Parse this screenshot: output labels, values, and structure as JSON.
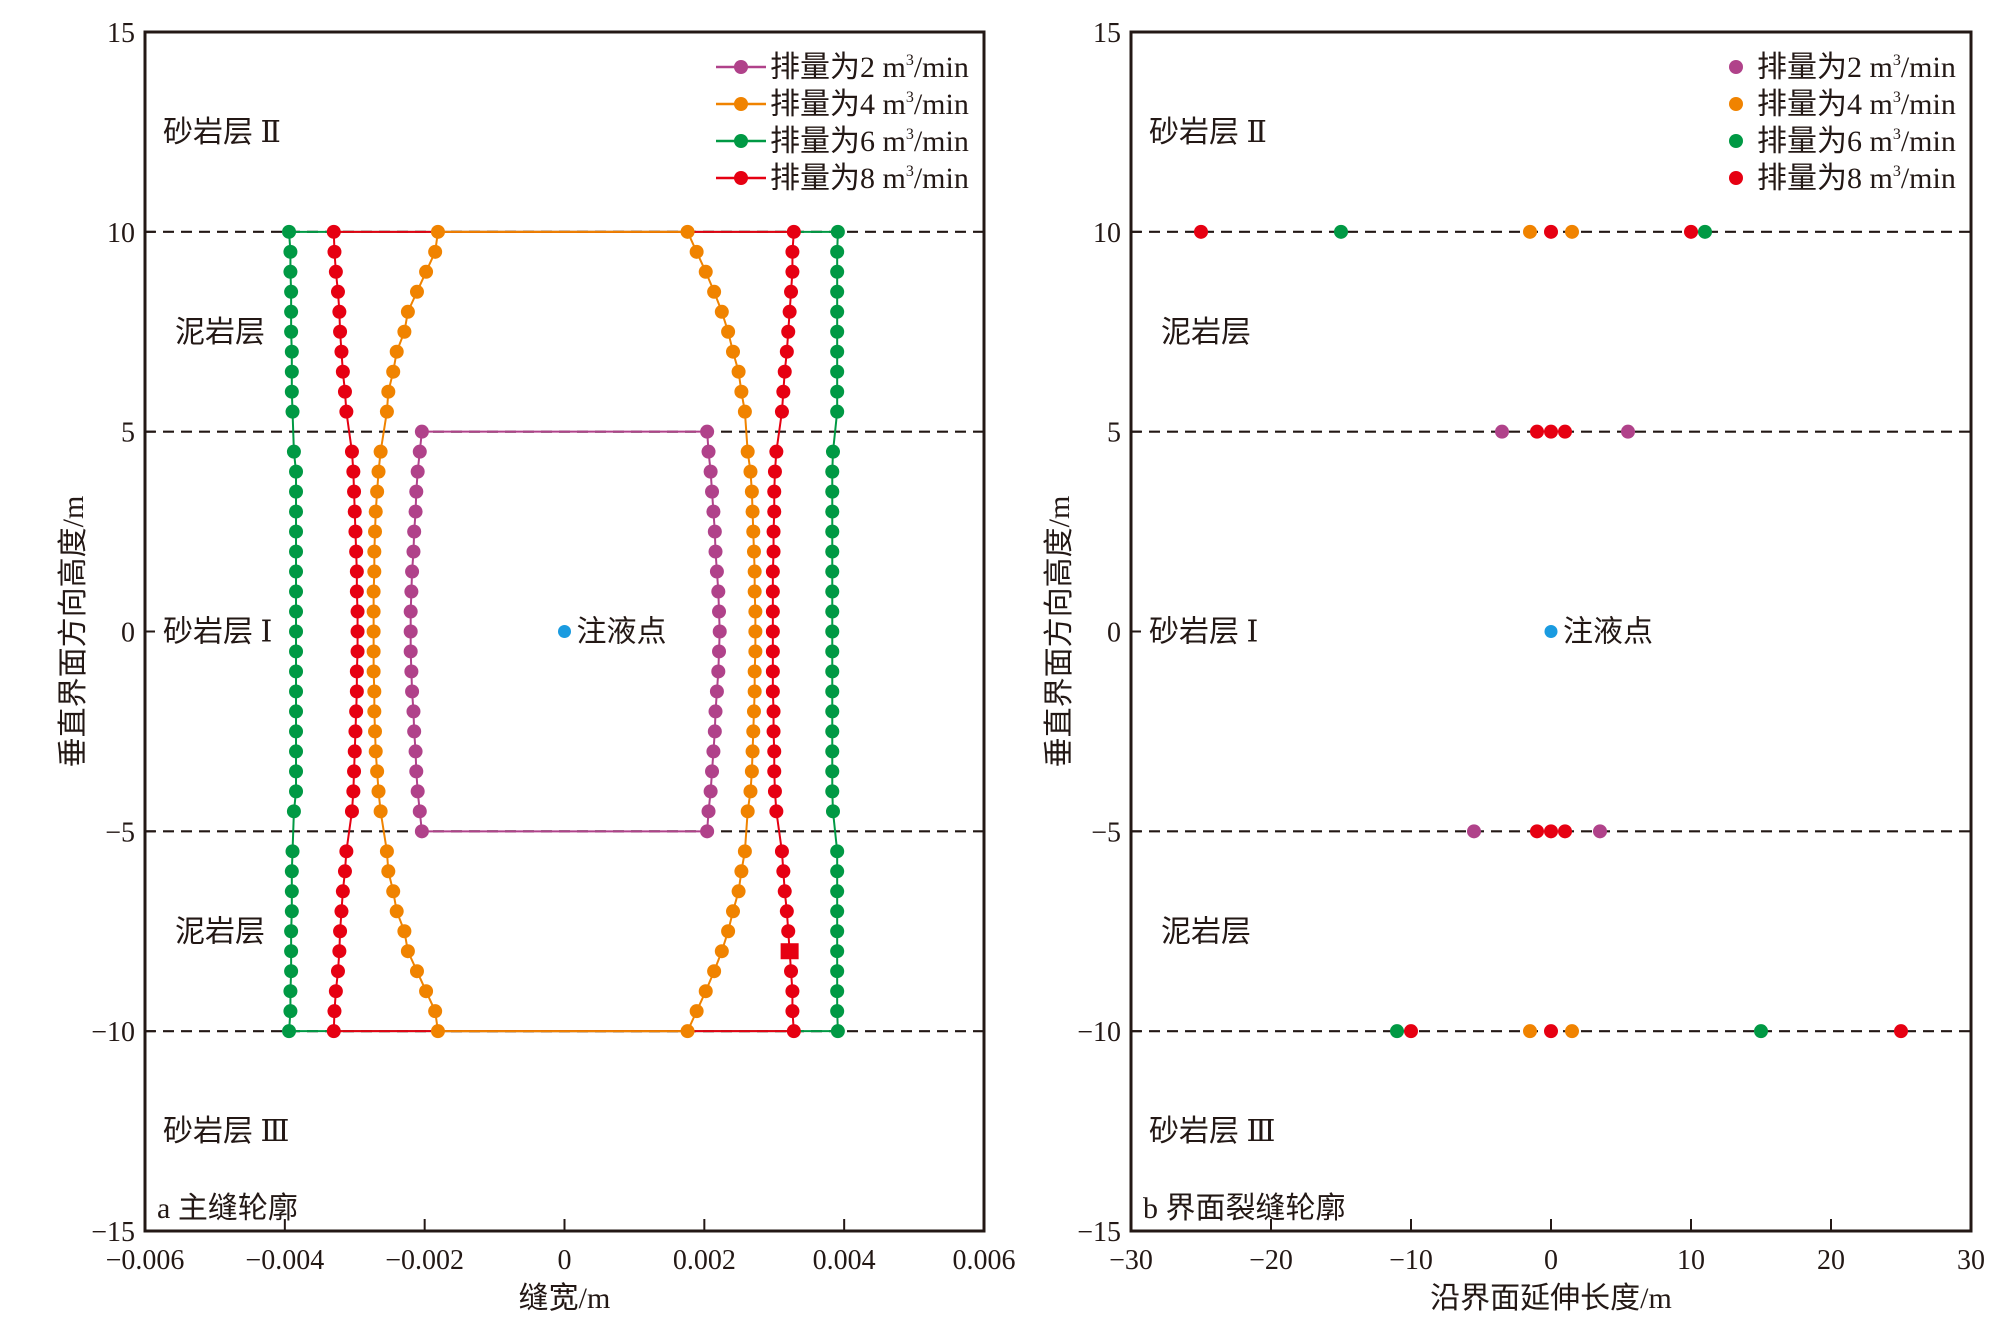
{
  "chart_data": [
    {
      "type": "line",
      "panel_label": "a 主缝轮廓",
      "xlabel": "缝宽/m",
      "ylabel": "垂直界面方向高度/m",
      "xlim": [
        -0.006,
        0.006
      ],
      "ylim": [
        -15,
        15
      ],
      "xticks": [
        "−0.006",
        "−0.004",
        "−0.002",
        "0",
        "0.002",
        "0.004",
        "0.006"
      ],
      "xtick_values": [
        -0.006,
        -0.004,
        -0.002,
        0,
        0.002,
        0.004,
        0.006
      ],
      "yticks": [
        "15",
        "10",
        "5",
        "0",
        "−5",
        "−10",
        "−15"
      ],
      "ytick_values": [
        15,
        10,
        5,
        0,
        -5,
        -10,
        -15
      ],
      "dashed_lines_y": [
        10,
        5,
        -5,
        -10
      ],
      "legend_position": "top-right",
      "layer_labels": [
        {
          "text": "砂岩层 Ⅱ",
          "y": 12.5
        },
        {
          "text": "泥岩层",
          "y": 7.5
        },
        {
          "text": "砂岩层 Ⅰ",
          "y": 0
        },
        {
          "text": "泥岩层",
          "y": -7.5
        },
        {
          "text": "砂岩层 Ⅲ",
          "y": -12.5
        }
      ],
      "injection_point": {
        "label": "注液点",
        "x": 0,
        "y": 0,
        "color": "#1a9be0"
      },
      "y_values": [
        10,
        9.5,
        9,
        8.5,
        8,
        7.5,
        7,
        6.5,
        6,
        5.5,
        4.5,
        4,
        3.5,
        3,
        2.5,
        2,
        1.5,
        1,
        0.5,
        0,
        -0.5,
        -1,
        -1.5,
        -2,
        -2.5,
        -3,
        -3.5,
        -4,
        -4.5,
        -5.5,
        -6,
        -6.5,
        -7,
        -7.5,
        -8,
        -8.5,
        -9,
        -9.5,
        -10
      ],
      "series": [
        {
          "name": "排量为6 m³/min",
          "legend": "排量为6 m",
          "color": "#009944",
          "x_left": [
            -0.00394,
            -0.00392,
            -0.00392,
            -0.00391,
            -0.00391,
            -0.00391,
            -0.0039,
            -0.0039,
            -0.0039,
            -0.00389,
            -0.00387,
            -0.00384,
            -0.00384,
            -0.00384,
            -0.00384,
            -0.00384,
            -0.00384,
            -0.00384,
            -0.00384,
            -0.00384,
            -0.00384,
            -0.00384,
            -0.00384,
            -0.00384,
            -0.00384,
            -0.00384,
            -0.00384,
            -0.00384,
            -0.00387,
            -0.00389,
            -0.0039,
            -0.0039,
            -0.0039,
            -0.00391,
            -0.00391,
            -0.00391,
            -0.00392,
            -0.00392,
            -0.00394
          ],
          "x_right": [
            0.00391,
            0.0039,
            0.0039,
            0.0039,
            0.0039,
            0.0039,
            0.0039,
            0.0039,
            0.0039,
            0.0039,
            0.00384,
            0.00383,
            0.00383,
            0.00383,
            0.00383,
            0.00383,
            0.00383,
            0.00383,
            0.00383,
            0.00383,
            0.00383,
            0.00383,
            0.00383,
            0.00383,
            0.00383,
            0.00383,
            0.00383,
            0.00383,
            0.00384,
            0.0039,
            0.0039,
            0.0039,
            0.0039,
            0.0039,
            0.0039,
            0.0039,
            0.0039,
            0.0039,
            0.00391
          ]
        },
        {
          "name": "排量为8 m³/min",
          "legend": "排量为8 m",
          "color": "#e60012",
          "x_left": [
            -0.0033,
            -0.00329,
            -0.00327,
            -0.00324,
            -0.00322,
            -0.00321,
            -0.00319,
            -0.00317,
            -0.00314,
            -0.00312,
            -0.00304,
            -0.00302,
            -0.00301,
            -0.003,
            -0.00299,
            -0.00298,
            -0.00297,
            -0.00297,
            -0.00296,
            -0.00296,
            -0.00296,
            -0.00297,
            -0.00297,
            -0.00298,
            -0.00299,
            -0.003,
            -0.00301,
            -0.00302,
            -0.00304,
            -0.00312,
            -0.00314,
            -0.00317,
            -0.00319,
            -0.00321,
            -0.00322,
            -0.00324,
            -0.00327,
            -0.00329,
            -0.0033
          ],
          "x_right": [
            0.00328,
            0.00326,
            0.00326,
            0.00324,
            0.00322,
            0.0032,
            0.00318,
            0.00315,
            0.00313,
            0.00311,
            0.00303,
            0.00301,
            0.003,
            0.003,
            0.00299,
            0.00299,
            0.00298,
            0.00298,
            0.00298,
            0.00298,
            0.00298,
            0.00298,
            0.00298,
            0.00299,
            0.00299,
            0.003,
            0.003,
            0.00301,
            0.00303,
            0.00311,
            0.00313,
            0.00315,
            0.00318,
            0.0032,
            0.00322,
            0.00324,
            0.00326,
            0.00326,
            0.00328
          ]
        },
        {
          "name": "排量为4 m³/min",
          "legend": "排量为4 m",
          "color": "#f08300",
          "x_left": [
            -0.00181,
            -0.00185,
            -0.00198,
            -0.00211,
            -0.00224,
            -0.00229,
            -0.0024,
            -0.00245,
            -0.00252,
            -0.00254,
            -0.00263,
            -0.00266,
            -0.00268,
            -0.0027,
            -0.00271,
            -0.00272,
            -0.00272,
            -0.00273,
            -0.00273,
            -0.00273,
            -0.00273,
            -0.00273,
            -0.00272,
            -0.00272,
            -0.00271,
            -0.0027,
            -0.00268,
            -0.00266,
            -0.00263,
            -0.00254,
            -0.00252,
            -0.00245,
            -0.0024,
            -0.00229,
            -0.00224,
            -0.00211,
            -0.00198,
            -0.00185,
            -0.00181
          ],
          "x_right": [
            0.00176,
            0.00189,
            0.00202,
            0.00214,
            0.00225,
            0.00234,
            0.00241,
            0.00249,
            0.00253,
            0.00258,
            0.00262,
            0.00266,
            0.00268,
            0.00269,
            0.0027,
            0.00271,
            0.00272,
            0.00272,
            0.00273,
            0.00273,
            0.00273,
            0.00272,
            0.00272,
            0.00271,
            0.0027,
            0.00269,
            0.00268,
            0.00266,
            0.00262,
            0.00258,
            0.00253,
            0.00249,
            0.00241,
            0.00234,
            0.00225,
            0.00214,
            0.00202,
            0.00189,
            0.00176
          ]
        },
        {
          "name": "排量为2 m³/min",
          "legend": "排量为2 m",
          "color": "#b0428a",
          "y_values": [
            5,
            4.5,
            4,
            3.5,
            3,
            2.5,
            2,
            1.5,
            1,
            0.5,
            0,
            -0.5,
            -1,
            -1.5,
            -2,
            -2.5,
            -3,
            -3.5,
            -4,
            -4.5,
            -5
          ],
          "x_left": [
            -0.00204,
            -0.00207,
            -0.0021,
            -0.00212,
            -0.00213,
            -0.00215,
            -0.00216,
            -0.00218,
            -0.00219,
            -0.0022,
            -0.0022,
            -0.0022,
            -0.00219,
            -0.00218,
            -0.00216,
            -0.00215,
            -0.00213,
            -0.00212,
            -0.0021,
            -0.00207,
            -0.00204
          ],
          "x_right": [
            0.00204,
            0.00206,
            0.00209,
            0.00211,
            0.00213,
            0.00215,
            0.00216,
            0.00218,
            0.0022,
            0.00221,
            0.00222,
            0.00221,
            0.0022,
            0.00218,
            0.00216,
            0.00215,
            0.00213,
            0.00211,
            0.00209,
            0.00206,
            0.00204
          ]
        }
      ],
      "legend_order": [
        3,
        2,
        0,
        1
      ],
      "special_marker": {
        "series": "排量为8 m³/min",
        "shape": "square",
        "x": 0.00322,
        "y": -8
      }
    },
    {
      "type": "scatter",
      "panel_label": "b 界面裂缝轮廓",
      "xlabel": "沿界面延伸长度/m",
      "ylabel": "垂直界面方向高度/m",
      "xlim": [
        -30,
        30
      ],
      "ylim": [
        -15,
        15
      ],
      "xticks": [
        "−30",
        "−20",
        "−10",
        "0",
        "10",
        "20",
        "30"
      ],
      "xtick_values": [
        -30,
        -20,
        -10,
        0,
        10,
        20,
        30
      ],
      "yticks": [
        "15",
        "10",
        "5",
        "0",
        "−5",
        "−10",
        "−15"
      ],
      "ytick_values": [
        15,
        10,
        5,
        0,
        -5,
        -10,
        -15
      ],
      "dashed_lines_y": [
        10,
        5,
        -5,
        -10
      ],
      "legend_position": "top-right",
      "layer_labels": [
        {
          "text": "砂岩层 Ⅱ",
          "y": 12.5
        },
        {
          "text": "泥岩层",
          "y": 7.5
        },
        {
          "text": "砂岩层 Ⅰ",
          "y": 0
        },
        {
          "text": "泥岩层",
          "y": -7.5
        },
        {
          "text": "砂岩层 Ⅲ",
          "y": -12.5
        }
      ],
      "injection_point": {
        "label": "注液点",
        "x": 0,
        "y": 0,
        "color": "#1a9be0"
      },
      "series": [
        {
          "name": "排量为2 m³/min",
          "legend": "排量为2 m",
          "color": "#b0428a",
          "points": [
            [
              -3.5,
              5
            ],
            [
              5.5,
              5
            ],
            [
              -5.5,
              -5
            ],
            [
              3.5,
              -5
            ]
          ]
        },
        {
          "name": "排量为4 m³/min",
          "legend": "排量为4 m",
          "color": "#f08300",
          "points": [
            [
              -1.5,
              10
            ],
            [
              1.5,
              10
            ],
            [
              -1.5,
              -10
            ],
            [
              1.5,
              -10
            ]
          ]
        },
        {
          "name": "排量为6 m³/min",
          "legend": "排量为6 m",
          "color": "#009944",
          "points": [
            [
              -15,
              10
            ],
            [
              11,
              10
            ],
            [
              -11,
              -10
            ],
            [
              15,
              -10
            ]
          ]
        },
        {
          "name": "排量为8 m³/min",
          "legend": "排量为8 m",
          "color": "#e60012",
          "points": [
            [
              -25,
              10
            ],
            [
              0,
              10
            ],
            [
              10,
              10
            ],
            [
              -1,
              5
            ],
            [
              0,
              5
            ],
            [
              1,
              5
            ],
            [
              -1,
              -5
            ],
            [
              0,
              -5
            ],
            [
              1,
              -5
            ],
            [
              -10,
              -10
            ],
            [
              0,
              -10
            ],
            [
              25,
              -10
            ]
          ]
        }
      ]
    }
  ],
  "legend_suffix_sup": "3",
  "legend_suffix": "/min"
}
